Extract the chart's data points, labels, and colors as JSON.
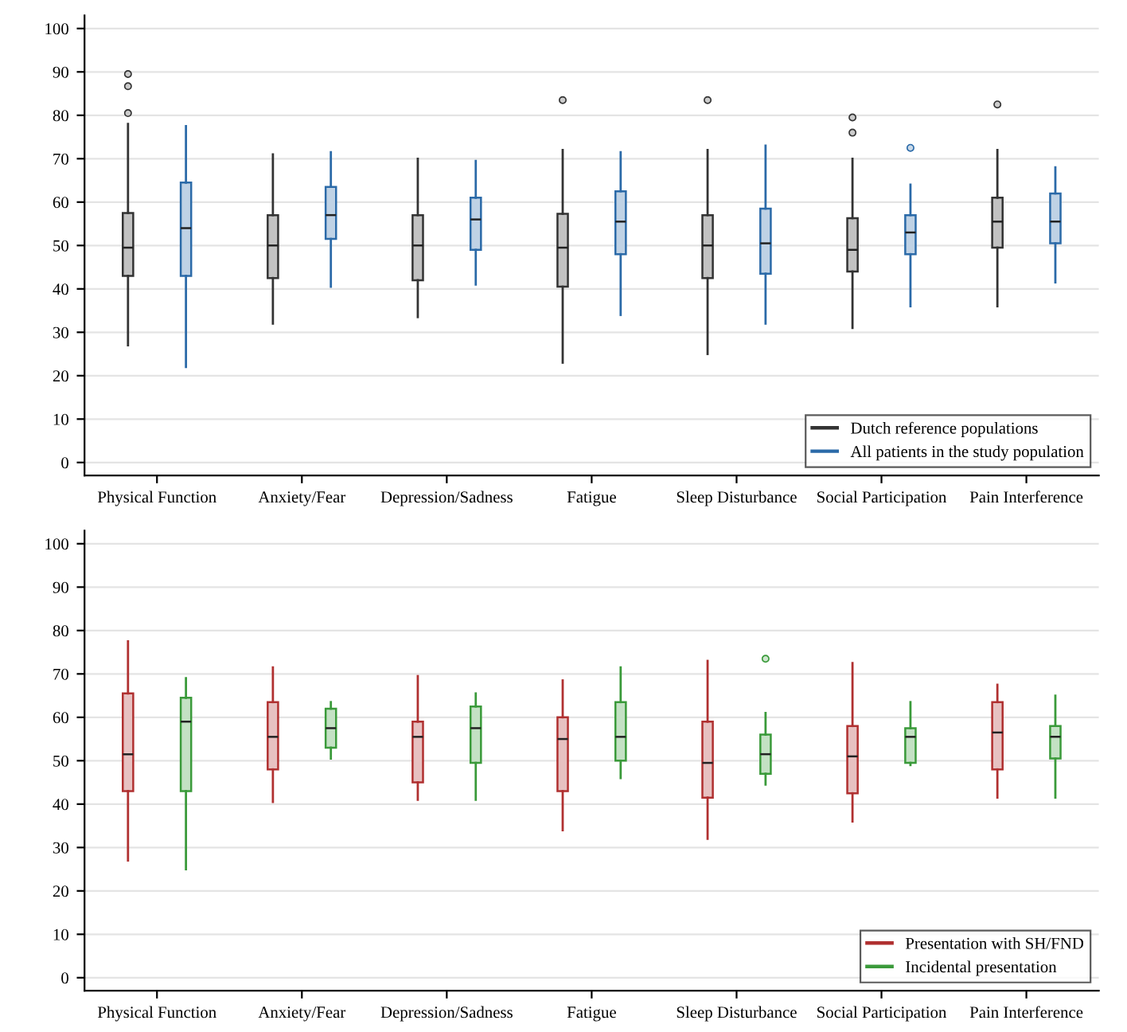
{
  "chart_data": [
    {
      "type": "box",
      "categories": [
        "Physical Function",
        "Anxiety/Fear",
        "Depression/Sadness",
        "Fatigue",
        "Sleep Disturbance",
        "Social Participation",
        "Pain Interference"
      ],
      "ylim": [
        -3,
        103
      ],
      "yticks": [
        0,
        10,
        20,
        30,
        40,
        50,
        60,
        70,
        80,
        90,
        100
      ],
      "grid": "y",
      "legend": "bottom right",
      "series": [
        {
          "name": "Dutch reference populations",
          "color": "#333333",
          "boxes": [
            {
              "low": 27,
              "q1": 43,
              "median": 49.5,
              "q3": 57.5,
              "high": 78,
              "outliers": [
                80.5,
                86.7,
                89.5
              ]
            },
            {
              "low": 32,
              "q1": 42.5,
              "median": 50,
              "q3": 57,
              "high": 71
            },
            {
              "low": 33.5,
              "q1": 42,
              "median": 50,
              "q3": 57,
              "high": 70
            },
            {
              "low": 23,
              "q1": 40.5,
              "median": 49.5,
              "q3": 57.3,
              "high": 72,
              "outliers": [
                83.5
              ]
            },
            {
              "low": 25,
              "q1": 42.5,
              "median": 50,
              "q3": 57,
              "high": 72,
              "outliers": [
                83.5
              ]
            },
            {
              "low": 31,
              "q1": 44,
              "median": 49,
              "q3": 56.3,
              "high": 70,
              "outliers": [
                76,
                79.5
              ]
            },
            {
              "low": 36,
              "q1": 49.5,
              "median": 55.5,
              "q3": 61,
              "high": 72,
              "outliers": [
                82.5
              ]
            }
          ]
        },
        {
          "name": "All patients in the study population",
          "color": "#2b6aa8",
          "boxes": [
            {
              "low": 22,
              "q1": 43,
              "median": 54,
              "q3": 64.5,
              "high": 77.5
            },
            {
              "low": 40.5,
              "q1": 51.5,
              "median": 57,
              "q3": 63.5,
              "high": 71.5
            },
            {
              "low": 41,
              "q1": 49,
              "median": 56,
              "q3": 61,
              "high": 69.5
            },
            {
              "low": 34,
              "q1": 48,
              "median": 55.5,
              "q3": 62.5,
              "high": 71.5
            },
            {
              "low": 32,
              "q1": 43.5,
              "median": 50.5,
              "q3": 58.5,
              "high": 73
            },
            {
              "low": 36,
              "q1": 48,
              "median": 53,
              "q3": 57,
              "high": 64,
              "outliers": [
                72.5
              ]
            },
            {
              "low": 41.5,
              "q1": 50.5,
              "median": 55.5,
              "q3": 62,
              "high": 68
            }
          ]
        }
      ]
    },
    {
      "type": "box",
      "categories": [
        "Physical Function",
        "Anxiety/Fear",
        "Depression/Sadness",
        "Fatigue",
        "Sleep Disturbance",
        "Social Participation",
        "Pain Interference"
      ],
      "ylim": [
        -3,
        103
      ],
      "yticks": [
        0,
        10,
        20,
        30,
        40,
        50,
        60,
        70,
        80,
        90,
        100
      ],
      "grid": "y",
      "legend": "bottom right",
      "series": [
        {
          "name": "Presentation with SH/FND",
          "color": "#b03030",
          "boxes": [
            {
              "low": 27,
              "q1": 43,
              "median": 51.5,
              "q3": 65.5,
              "high": 77.5
            },
            {
              "low": 40.5,
              "q1": 48,
              "median": 55.5,
              "q3": 63.5,
              "high": 71.5
            },
            {
              "low": 41,
              "q1": 45,
              "median": 55.5,
              "q3": 59,
              "high": 69.5
            },
            {
              "low": 34,
              "q1": 43,
              "median": 55,
              "q3": 60,
              "high": 68.5
            },
            {
              "low": 32,
              "q1": 41.5,
              "median": 49.5,
              "q3": 59,
              "high": 73
            },
            {
              "low": 36,
              "q1": 42.5,
              "median": 51,
              "q3": 58,
              "high": 72.5
            },
            {
              "low": 41.5,
              "q1": 48,
              "median": 56.5,
              "q3": 63.5,
              "high": 67.5
            }
          ]
        },
        {
          "name": "Incidental presentation",
          "color": "#3a9a3a",
          "boxes": [
            {
              "low": 25,
              "q1": 43,
              "median": 59,
              "q3": 64.5,
              "high": 69
            },
            {
              "low": 50.5,
              "q1": 53,
              "median": 57.5,
              "q3": 62,
              "high": 63.5
            },
            {
              "low": 41,
              "q1": 49.5,
              "median": 57.5,
              "q3": 62.5,
              "high": 65.5
            },
            {
              "low": 46,
              "q1": 50,
              "median": 55.5,
              "q3": 63.5,
              "high": 71.5
            },
            {
              "low": 44.5,
              "q1": 47,
              "median": 51.5,
              "q3": 56,
              "high": 61,
              "outliers": [
                73.5
              ]
            },
            {
              "low": 49,
              "q1": 49.5,
              "median": 55.5,
              "q3": 57.5,
              "high": 63.5
            },
            {
              "low": 41.5,
              "q1": 50.5,
              "median": 55.5,
              "q3": 58,
              "high": 65
            }
          ]
        }
      ]
    }
  ]
}
